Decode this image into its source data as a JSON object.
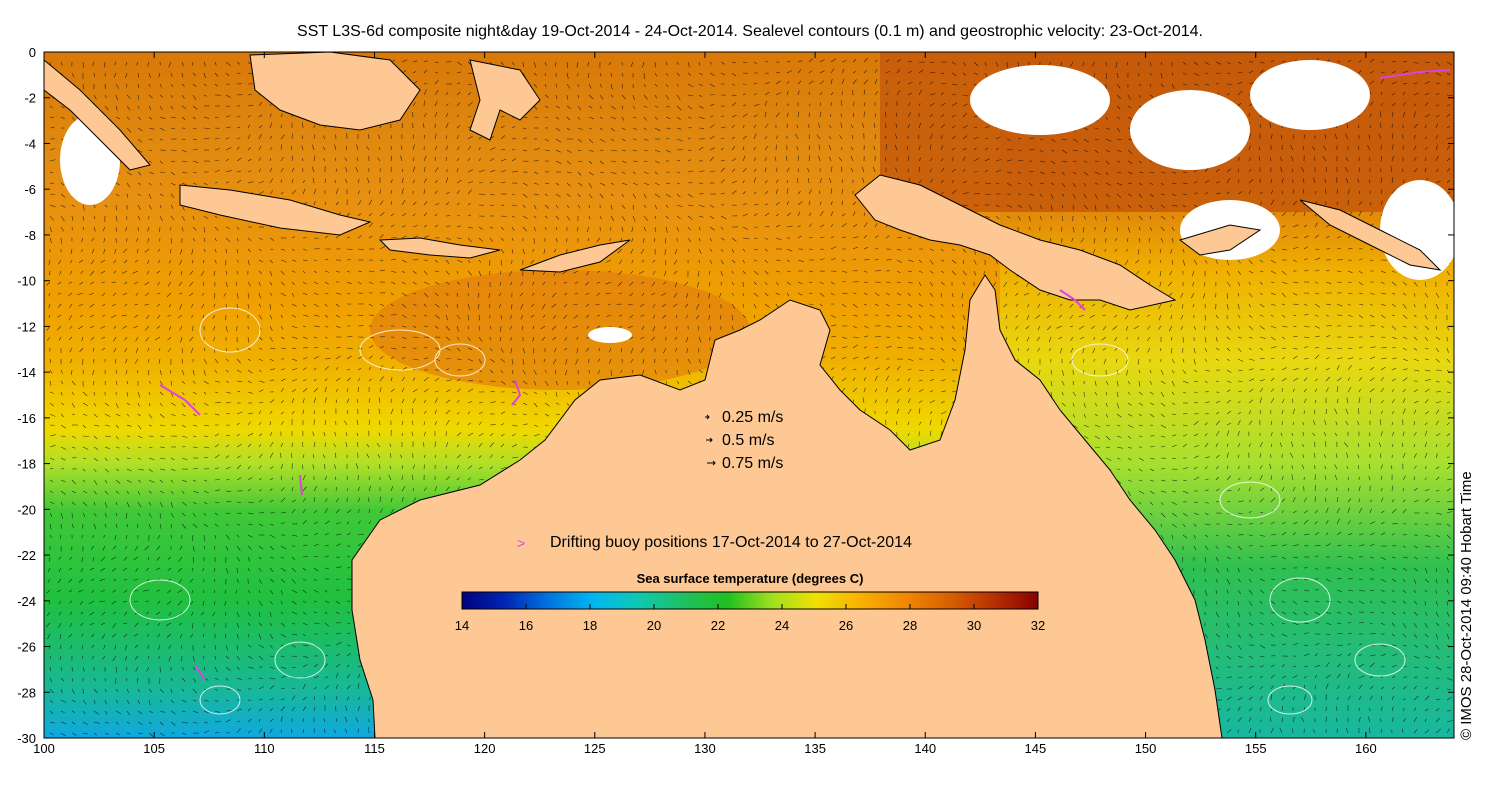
{
  "title": "SST L3S-6d composite night&day 19-Oct-2014 - 24-Oct-2014. Sealevel contours (0.1 m) and geostrophic velocity: 23-Oct-2014.",
  "credit": "© IMOS 28-Oct-2014 09:40 Hobart Time",
  "axes": {
    "x_ticks": [
      "100",
      "105",
      "110",
      "115",
      "120",
      "125",
      "130",
      "135",
      "140",
      "145",
      "150",
      "155",
      "160"
    ],
    "y_ticks": [
      "0",
      "-2",
      "-4",
      "-6",
      "-8",
      "-10",
      "-12",
      "-14",
      "-16",
      "-18",
      "-20",
      "-22",
      "-24",
      "-26",
      "-28",
      "-30"
    ],
    "lon_range": [
      100,
      164
    ],
    "lat_range": [
      -30,
      0
    ]
  },
  "velocity_reference": {
    "items": [
      {
        "label": "0.25 m/s",
        "speed": 0.25
      },
      {
        "label": "0.5 m/s",
        "speed": 0.5
      },
      {
        "label": "0.75 m/s",
        "speed": 0.75
      }
    ]
  },
  "buoy_legend": {
    "symbol": ">",
    "label": "Drifting buoy positions 17-Oct-2014 to 27-Oct-2014",
    "color": "#e040e0"
  },
  "colorbar": {
    "title": "Sea surface temperature (degrees C)",
    "labels": [
      "14",
      "16",
      "18",
      "20",
      "22",
      "24",
      "26",
      "28",
      "30",
      "32"
    ],
    "range": [
      14,
      32
    ],
    "colors": [
      "#000080",
      "#0028b4",
      "#0078e0",
      "#00b8f0",
      "#10c8b0",
      "#20c060",
      "#20c020",
      "#a0e020",
      "#f0e000",
      "#f8b000",
      "#f08800",
      "#d86000",
      "#b83000",
      "#880000"
    ]
  },
  "map": {
    "land_color": "#fdc894",
    "cloud_color": "#ffffff",
    "contour_color": "#ffffff",
    "arrow_color": "#000000"
  }
}
